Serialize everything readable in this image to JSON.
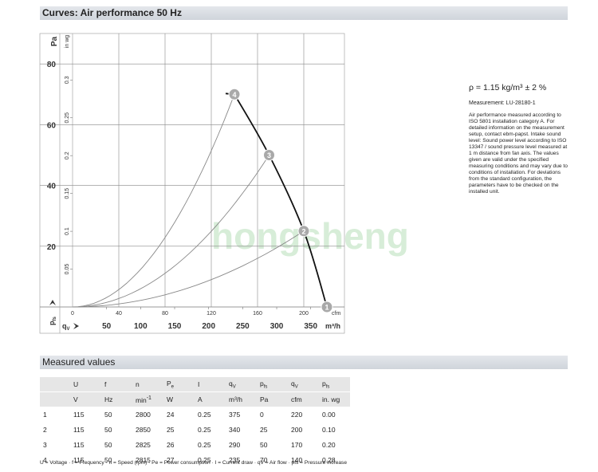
{
  "header": {
    "title": "Curves: Air performance 50 Hz"
  },
  "curves": {
    "y_unit": "Pa",
    "y2_unit": "in wg",
    "x_unit": "cfm",
    "x2_unit": "m³/h",
    "y_symbol": {
      "symbol": "p",
      "sub": "fs"
    },
    "x_symbol": {
      "symbol": "q",
      "sub": "V"
    },
    "pa_ticks": [
      20,
      40,
      60,
      80
    ],
    "inwg_ticks": [
      0.05,
      0.1,
      0.15,
      0.2,
      0.25,
      0.3
    ],
    "cfm_ticks": [
      0,
      40,
      80,
      120,
      160,
      200
    ],
    "m3h_ticks": [
      50,
      100,
      150,
      200,
      250,
      300,
      350
    ],
    "points": [
      {
        "label": "1",
        "cfm": 220,
        "pa": 0
      },
      {
        "label": "2",
        "cfm": 200,
        "pa": 25
      },
      {
        "label": "3",
        "cfm": 170,
        "pa": 50
      },
      {
        "label": "4",
        "cfm": 140,
        "pa": 70
      }
    ],
    "watermark": "hongsheng"
  },
  "notes": {
    "density": "ρ = 1.15 kg/m³ ± 2 %",
    "measurement": "Measurement: LU-28180-1",
    "text": "Air performance measured according to ISO 5801 installation category A. For detailed information on the measurement setup, contact ebm-papst. Intake sound level: Sound power level according to ISO 13347 / sound pressure level measured at 1 m distance from fan axis. The values given are valid under the specified measuring conditions and may vary due to conditions of installation. For deviations from the standard configuration, the parameters have to be checked on the installed unit."
  },
  "measured": {
    "title": "Measured values",
    "columns": [
      {
        "symbol": "U",
        "unit": "V"
      },
      {
        "symbol": "f",
        "unit": "Hz"
      },
      {
        "symbol": "n",
        "unit": "min",
        "unit_sup": "-1"
      },
      {
        "symbol": "P",
        "sub": "e",
        "unit": "W"
      },
      {
        "symbol": "I",
        "unit": "A"
      },
      {
        "symbol": "q",
        "sub": "V",
        "unit": "m³/h"
      },
      {
        "symbol": "p",
        "sub": "fs",
        "unit": "Pa"
      },
      {
        "symbol": "q",
        "sub": "V",
        "unit": "cfm"
      },
      {
        "symbol": "p",
        "sub": "fs",
        "unit": "in. wg"
      }
    ],
    "rows": [
      [
        "1",
        "115",
        "50",
        "2800",
        "24",
        "0.25",
        "375",
        "0",
        "220",
        "0.00"
      ],
      [
        "2",
        "115",
        "50",
        "2850",
        "25",
        "0.25",
        "340",
        "25",
        "200",
        "0.10"
      ],
      [
        "3",
        "115",
        "50",
        "2825",
        "26",
        "0.25",
        "290",
        "50",
        "170",
        "0.20"
      ],
      [
        "4",
        "115",
        "50",
        "2815",
        "27",
        "0.25",
        "235",
        "70",
        "140",
        "0.28"
      ]
    ],
    "footnote": "U = Voltage · f = Frequency · n = Speed (rpm) · Pe = Power consumption · I = Current draw · qV = Air flow · pfs = Pressure increase"
  }
}
